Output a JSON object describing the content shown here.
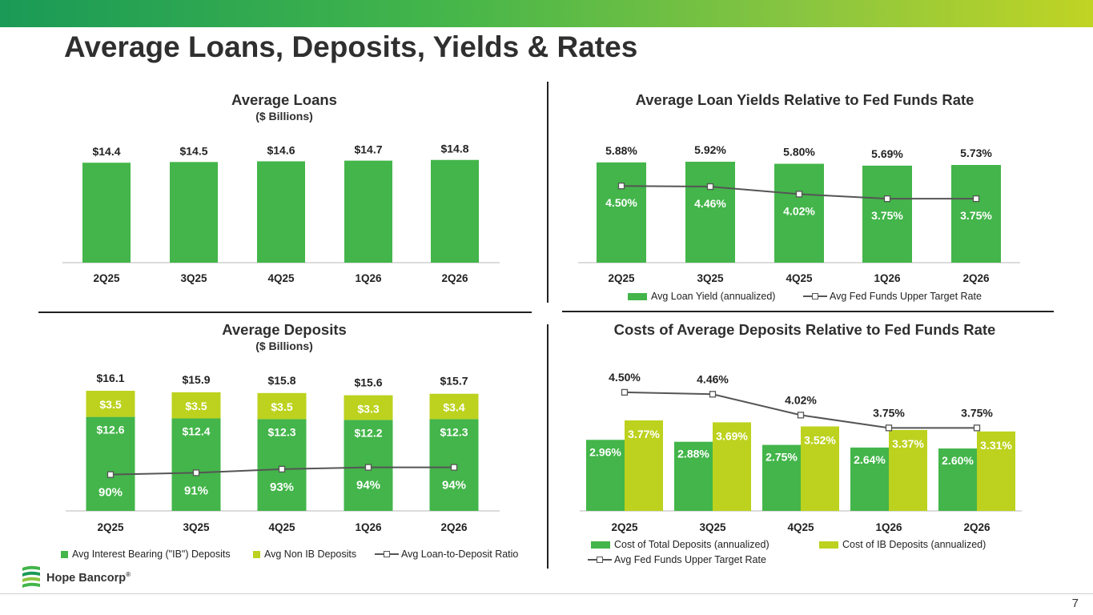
{
  "page": {
    "title": "Average Loans, Deposits, Yields & Rates",
    "page_number": "7"
  },
  "logo": {
    "text": "Hope Bancorp",
    "mark": "®"
  },
  "colors": {
    "green": "#43b54a",
    "lime": "#bcd21e",
    "line": "#555555",
    "white_label": "#ffffff"
  },
  "chart_data": [
    {
      "id": "avg-loans",
      "type": "bar",
      "title": "Average Loans",
      "subtitle": "($ Billions)",
      "categories": [
        "2Q25",
        "3Q25",
        "4Q25",
        "1Q26",
        "2Q26"
      ],
      "values": [
        14.4,
        14.5,
        14.6,
        14.7,
        14.8
      ],
      "labels": [
        "$14.4",
        "$14.5",
        "$14.6",
        "$14.7",
        "$14.8"
      ]
    },
    {
      "id": "loan-yields",
      "type": "bar",
      "title": "Average Loan Yields Relative to Fed Funds Rate",
      "categories": [
        "2Q25",
        "3Q25",
        "4Q25",
        "1Q26",
        "2Q26"
      ],
      "series": [
        {
          "name": "Avg Loan Yield (annualized)",
          "kind": "bar",
          "values": [
            5.88,
            5.92,
            5.8,
            5.69,
            5.73
          ],
          "labels": [
            "5.88%",
            "5.92%",
            "5.80%",
            "5.69%",
            "5.73%"
          ]
        },
        {
          "name": "Avg Fed Funds Upper Target Rate",
          "kind": "line",
          "values": [
            4.5,
            4.46,
            4.02,
            3.75,
            3.75
          ],
          "labels": [
            "4.50%",
            "4.46%",
            "4.02%",
            "3.75%",
            "3.75%"
          ]
        }
      ]
    },
    {
      "id": "avg-deposits",
      "type": "bar",
      "title": "Average Deposits",
      "subtitle": "($ Billions)",
      "categories": [
        "2Q25",
        "3Q25",
        "4Q25",
        "1Q26",
        "2Q26"
      ],
      "totals": [
        16.1,
        15.9,
        15.8,
        15.6,
        15.7
      ],
      "total_labels": [
        "$16.1",
        "$15.9",
        "$15.8",
        "$15.6",
        "$15.7"
      ],
      "series": [
        {
          "name": "Avg Interest Bearing (\"IB\") Deposits",
          "kind": "bar",
          "values": [
            12.6,
            12.4,
            12.3,
            12.2,
            12.3
          ],
          "labels": [
            "$12.6",
            "$12.4",
            "$12.3",
            "$12.2",
            "$12.3"
          ]
        },
        {
          "name": "Avg Non IB Deposits",
          "kind": "bar",
          "values": [
            3.5,
            3.5,
            3.5,
            3.3,
            3.4
          ],
          "labels": [
            "$3.5",
            "$3.5",
            "$3.5",
            "$3.3",
            "$3.4"
          ]
        },
        {
          "name": "Avg Loan-to-Deposit Ratio",
          "kind": "line",
          "values": [
            90,
            91,
            93,
            94,
            94
          ],
          "labels": [
            "90%",
            "91%",
            "93%",
            "94%",
            "94%"
          ]
        }
      ]
    },
    {
      "id": "deposit-costs",
      "type": "bar",
      "title": "Costs of Average Deposits Relative to Fed Funds Rate",
      "categories": [
        "2Q25",
        "3Q25",
        "4Q25",
        "1Q26",
        "2Q26"
      ],
      "series": [
        {
          "name": "Cost of Total Deposits (annualized)",
          "kind": "bar",
          "values": [
            2.96,
            2.88,
            2.75,
            2.64,
            2.6
          ],
          "labels": [
            "2.96%",
            "2.88%",
            "2.75%",
            "2.64%",
            "2.60%"
          ]
        },
        {
          "name": "Cost of IB Deposits (annualized)",
          "kind": "bar",
          "values": [
            3.77,
            3.69,
            3.52,
            3.37,
            3.31
          ],
          "labels": [
            "3.77%",
            "3.69%",
            "3.52%",
            "3.37%",
            "3.31%"
          ]
        },
        {
          "name": "Avg Fed Funds Upper Target Rate",
          "kind": "line",
          "values": [
            4.5,
            4.46,
            4.02,
            3.75,
            3.75
          ],
          "labels": [
            "4.50%",
            "4.46%",
            "4.02%",
            "3.75%",
            "3.75%"
          ]
        }
      ]
    }
  ]
}
